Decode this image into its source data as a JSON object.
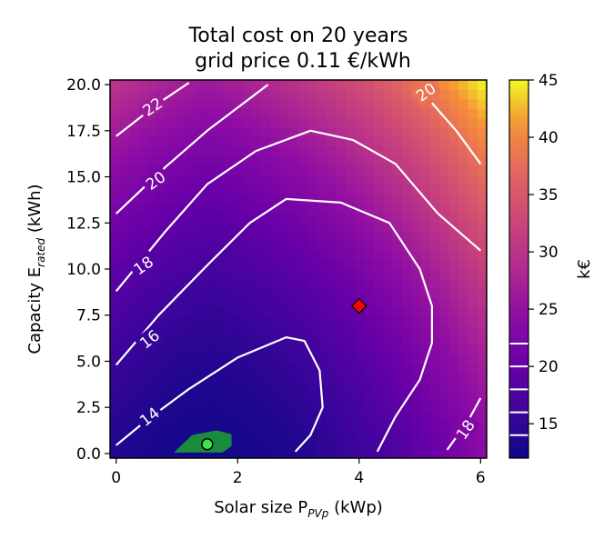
{
  "chart_data": {
    "type": "heatmap",
    "title_line1": "Total cost on 20 years",
    "title_line2": "grid price 0.11 €/kWh",
    "xlabel": "Solar size P",
    "xlabel_sub": "PVp",
    "xlabel_unit": " (kWp)",
    "ylabel": "Capacity E",
    "ylabel_sub": "rated",
    "ylabel_unit": " (kWh)",
    "xlim": [
      -0.1,
      6.1
    ],
    "ylim": [
      -0.25,
      20.25
    ],
    "x_ticks": [
      {
        "value": 0,
        "label": "0"
      },
      {
        "value": 2,
        "label": "2"
      },
      {
        "value": 4,
        "label": "4"
      },
      {
        "value": 6,
        "label": "6"
      }
    ],
    "y_ticks": [
      {
        "value": 0,
        "label": "0.0"
      },
      {
        "value": 2.5,
        "label": "2.5"
      },
      {
        "value": 5,
        "label": "5.0"
      },
      {
        "value": 7.5,
        "label": "7.5"
      },
      {
        "value": 10,
        "label": "10.0"
      },
      {
        "value": 12.5,
        "label": "12.5"
      },
      {
        "value": 15,
        "label": "15.0"
      },
      {
        "value": 17.5,
        "label": "17.5"
      },
      {
        "value": 20,
        "label": "20.0"
      }
    ],
    "colorbar": {
      "label": "k€",
      "range": [
        12,
        45
      ],
      "ticks": [
        {
          "value": 15,
          "label": "15"
        },
        {
          "value": 20,
          "label": "20"
        },
        {
          "value": 25,
          "label": "25"
        },
        {
          "value": 30,
          "label": "30"
        },
        {
          "value": 35,
          "label": "35"
        },
        {
          "value": 40,
          "label": "40"
        },
        {
          "value": 45,
          "label": "45"
        }
      ],
      "contour_marks": [
        14,
        16,
        18,
        20,
        22
      ],
      "colormap": "plasma"
    },
    "contours": [
      {
        "level": 14,
        "label": "14",
        "points": [
          [
            0,
            0.45
          ],
          [
            0.5,
            1.8
          ],
          [
            1.2,
            3.5
          ],
          [
            2.0,
            5.2
          ],
          [
            2.8,
            6.3
          ],
          [
            3.1,
            6.1
          ],
          [
            3.35,
            4.5
          ],
          [
            3.4,
            2.5
          ],
          [
            3.2,
            1.0
          ],
          [
            2.95,
            0.1
          ]
        ]
      },
      {
        "level": 16,
        "label": "16",
        "points": [
          [
            0,
            4.8
          ],
          [
            0.7,
            7.5
          ],
          [
            1.5,
            10.2
          ],
          [
            2.2,
            12.5
          ],
          [
            2.8,
            13.8
          ],
          [
            3.7,
            13.6
          ],
          [
            4.5,
            12.5
          ],
          [
            5.0,
            10.0
          ],
          [
            5.2,
            8.0
          ],
          [
            5.2,
            6.0
          ],
          [
            5.0,
            4.0
          ],
          [
            4.6,
            2.0
          ],
          [
            4.3,
            0.1
          ]
        ]
      },
      {
        "level": 18,
        "label": "18",
        "points": [
          [
            0,
            8.8
          ],
          [
            0.8,
            12.0
          ],
          [
            1.5,
            14.6
          ],
          [
            2.3,
            16.4
          ],
          [
            3.2,
            17.5
          ],
          [
            3.9,
            17.0
          ],
          [
            4.6,
            15.7
          ],
          [
            5.3,
            13.0
          ],
          [
            6.0,
            11.0
          ]
        ]
      },
      {
        "level": 18,
        "label": "18",
        "points": [
          [
            5.45,
            0.2
          ],
          [
            5.8,
            1.8
          ],
          [
            6.0,
            3.0
          ]
        ]
      },
      {
        "level": 20,
        "label": "20",
        "points": [
          [
            0,
            13.0
          ],
          [
            0.8,
            15.5
          ],
          [
            1.5,
            17.5
          ],
          [
            2.3,
            19.5
          ],
          [
            2.5,
            20.0
          ]
        ]
      },
      {
        "level": 20,
        "label": "20",
        "points": [
          [
            5.2,
            19.0
          ],
          [
            5.6,
            17.5
          ],
          [
            6.0,
            15.7
          ]
        ]
      },
      {
        "level": 22,
        "label": "22",
        "points": [
          [
            0,
            17.2
          ],
          [
            0.7,
            19.0
          ],
          [
            1.2,
            20.1
          ]
        ]
      }
    ],
    "labels_on_contours": [
      {
        "text": "14",
        "x": 0.55,
        "y": 2.0,
        "angle": -38
      },
      {
        "text": "16",
        "x": 0.55,
        "y": 6.2,
        "angle": -38
      },
      {
        "text": "18",
        "x": 0.45,
        "y": 10.2,
        "angle": -35
      },
      {
        "text": "20",
        "x": 0.65,
        "y": 14.8,
        "angle": -35
      },
      {
        "text": "22",
        "x": 0.6,
        "y": 18.8,
        "angle": -35
      },
      {
        "text": "20",
        "x": 5.1,
        "y": 19.6,
        "angle": -35
      },
      {
        "text": "18",
        "x": 5.75,
        "y": 1.3,
        "angle": -55
      }
    ],
    "minimum_region": {
      "level_below": 13,
      "color": "#1a8a3c",
      "points": [
        [
          0.95,
          0.05
        ],
        [
          1.25,
          1.0
        ],
        [
          1.65,
          1.25
        ],
        [
          1.9,
          1.05
        ],
        [
          1.9,
          0.4
        ],
        [
          1.75,
          0.05
        ]
      ]
    },
    "markers": [
      {
        "name": "optimum",
        "x": 1.5,
        "y": 0.5,
        "shape": "circle",
        "color": "#39e64a"
      },
      {
        "name": "reference",
        "x": 4.0,
        "y": 8.0,
        "shape": "diamond",
        "color": "#ff0000"
      }
    ]
  }
}
